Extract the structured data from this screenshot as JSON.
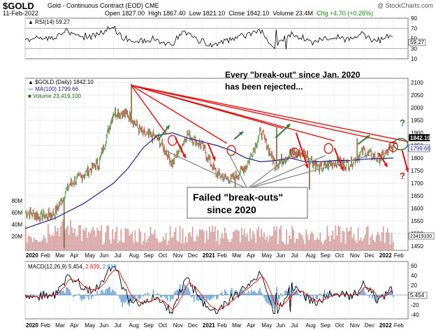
{
  "header": {
    "symbol": "$GOLD",
    "name": "Gold - Continuous Contract (EOD)",
    "exchange": "CME",
    "date": "11-Feb-2022",
    "open_label": "Open",
    "open": "1827.00",
    "high_label": "High",
    "high": "1867.40",
    "low_label": "Low",
    "low": "1821.10",
    "close_label": "Close",
    "close": "1842.10",
    "volume_label": "Volume",
    "volume": "23.4M",
    "change": "Chg +4.70 (+0.26%)",
    "watermark": "@ StockCharts.com"
  },
  "rsi": {
    "label": "RSI(14) 59.27",
    "value_tag": "59.27",
    "levels": [
      70,
      30
    ],
    "ticks": [
      "90",
      "70",
      "50",
      "30",
      "10"
    ]
  },
  "price": {
    "legend_main": "$GOLD (Daily) 1842.10",
    "legend_ma": "MA(100) 1799.66",
    "legend_vol": "Volume 23,419,100",
    "close_tag": "1842.10",
    "ma_tag": "1799.66",
    "vol_tag": "23419100",
    "y_ticks": [
      "2100",
      "2050",
      "2000",
      "1950",
      "1900",
      "1850",
      "1800",
      "1750",
      "1700",
      "1650",
      "1600",
      "1550",
      "1500",
      "1450"
    ],
    "vol_ticks": [
      "80M",
      "60M",
      "40M",
      "20M"
    ]
  },
  "annotations": {
    "title_line1": "Every \"break-out\" since Jan. 2020",
    "title_line2": "has been rejected...",
    "box_line1": "Failed \"break-outs\"",
    "box_line2": "since 2020",
    "question_mark_top": "?",
    "question_mark_bottom": "?"
  },
  "macd": {
    "label_name": "MACD(12,26,9)",
    "macd": "5.454",
    "signal": "2.839",
    "hist": "2.616",
    "value_tag": "5.454",
    "ticks": [
      "60",
      "40",
      "20",
      "0",
      "-20",
      "-40"
    ]
  },
  "x_axis_labels": [
    "2020",
    "Feb",
    "Mar",
    "Apr",
    "May",
    "Jun",
    "Jul",
    "Aug",
    "Sep",
    "Oct",
    "Nov",
    "Dec",
    "2021",
    "Feb",
    "Mar",
    "Apr",
    "May",
    "Jun",
    "Jul",
    "Aug",
    "Sep",
    "Oct",
    "Nov",
    "Dec",
    "2022",
    "Feb"
  ],
  "colors": {
    "up": "#1a8a1a",
    "down": "#cc1111",
    "ma": "#22228a",
    "volume": "#d49a9a",
    "rsi_fill": "#6a8a3a",
    "annot_red": "#e01010",
    "annot_green": "#2e7d32",
    "annot_gray": "#8a8a8a",
    "macd_line": "#000000",
    "signal_line": "#e01010",
    "hist": "#2a7ac8"
  },
  "chart_data": {
    "type": "candlestick",
    "x_range": [
      "2020-01-02",
      "2022-02-11"
    ],
    "y_range": [
      1450,
      2100
    ],
    "price_monthly_close": [
      {
        "month": "2020-01",
        "close": 1587
      },
      {
        "month": "2020-02",
        "close": 1567
      },
      {
        "month": "2020-03",
        "close": 1580
      },
      {
        "month": "2020-04",
        "close": 1695
      },
      {
        "month": "2020-05",
        "close": 1736
      },
      {
        "month": "2020-06",
        "close": 1781
      },
      {
        "month": "2020-07",
        "close": 1985
      },
      {
        "month": "2020-08",
        "close": 1971
      },
      {
        "month": "2020-09",
        "close": 1895
      },
      {
        "month": "2020-10",
        "close": 1880
      },
      {
        "month": "2020-11",
        "close": 1780
      },
      {
        "month": "2020-12",
        "close": 1895
      },
      {
        "month": "2021-01",
        "close": 1850
      },
      {
        "month": "2021-02",
        "close": 1734
      },
      {
        "month": "2021-03",
        "close": 1715
      },
      {
        "month": "2021-04",
        "close": 1768
      },
      {
        "month": "2021-05",
        "close": 1905
      },
      {
        "month": "2021-06",
        "close": 1771
      },
      {
        "month": "2021-07",
        "close": 1817
      },
      {
        "month": "2021-08",
        "close": 1818
      },
      {
        "month": "2021-09",
        "close": 1757
      },
      {
        "month": "2021-10",
        "close": 1784
      },
      {
        "month": "2021-11",
        "close": 1774
      },
      {
        "month": "2021-12",
        "close": 1828
      },
      {
        "month": "2022-01",
        "close": 1796
      },
      {
        "month": "2022-02",
        "close": 1842
      }
    ],
    "events": [
      {
        "date": "2020-03-19",
        "low": 1450
      },
      {
        "date": "2020-08-06",
        "high": 2089
      },
      {
        "date": "2021-03-08",
        "low": 1676
      },
      {
        "date": "2021-06-01",
        "high": 1920
      },
      {
        "date": "2021-08-09",
        "low": 1682
      },
      {
        "date": "2021-11-16",
        "high": 1877
      }
    ],
    "ma100_monthly": [
      1520,
      1540,
      1560,
      1590,
      1620,
      1660,
      1700,
      1760,
      1840,
      1890,
      1900,
      1880,
      1865,
      1850,
      1830,
      1800,
      1785,
      1790,
      1800,
      1785,
      1785,
      1790,
      1790,
      1795,
      1798,
      1800
    ],
    "rsi_range": [
      10,
      90
    ],
    "macd_range": [
      -40,
      60
    ]
  }
}
